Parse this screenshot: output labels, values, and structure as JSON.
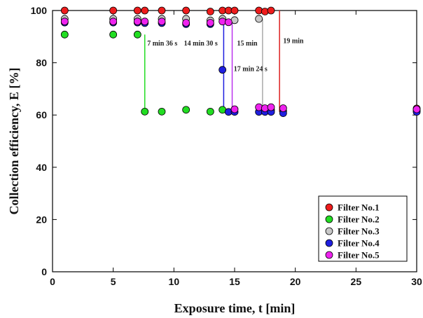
{
  "chart_data": {
    "type": "scatter",
    "xlabel": "Exposure time, t [min]",
    "ylabel": "Collection efficiency, E [%]",
    "xlim": [
      0,
      30
    ],
    "ylim": [
      0,
      100
    ],
    "xticks": [
      0,
      5,
      10,
      15,
      20,
      25,
      30
    ],
    "yticks": [
      0,
      20,
      40,
      60,
      80,
      100
    ],
    "grid": false,
    "legend_position": "bottom-right",
    "series": [
      {
        "name": "Filter No.1",
        "color": "#ee1c1c",
        "points": [
          [
            1,
            100
          ],
          [
            5,
            100
          ],
          [
            7,
            100
          ],
          [
            7.6,
            100
          ],
          [
            9,
            100
          ],
          [
            11,
            100
          ],
          [
            13,
            99.6
          ],
          [
            14,
            100
          ],
          [
            14.5,
            100
          ],
          [
            15,
            100
          ],
          [
            17,
            100
          ],
          [
            17.5,
            99.6
          ],
          [
            18,
            100
          ],
          [
            30,
            62.5
          ]
        ]
      },
      {
        "name": "Filter No.2",
        "color": "#22dd22",
        "points": [
          [
            1,
            90.8
          ],
          [
            5,
            90.8
          ],
          [
            7,
            90.8
          ],
          [
            7.6,
            61.3
          ],
          [
            9,
            61.3
          ],
          [
            11,
            62
          ],
          [
            13,
            61.3
          ],
          [
            14,
            62
          ],
          [
            30,
            62
          ]
        ]
      },
      {
        "name": "Filter No.3",
        "color": "#c8c8c8",
        "points": [
          [
            1,
            96.8
          ],
          [
            5,
            96.8
          ],
          [
            7,
            96.8
          ],
          [
            9,
            96.8
          ],
          [
            11,
            96.8
          ],
          [
            13,
            96.2
          ],
          [
            14,
            96.8
          ],
          [
            15,
            96.3
          ],
          [
            17,
            96.8
          ],
          [
            17.5,
            62
          ],
          [
            18,
            62
          ],
          [
            19,
            61.5
          ],
          [
            30,
            61.5
          ]
        ]
      },
      {
        "name": "Filter No.4",
        "color": "#1f1fe0",
        "points": [
          [
            1,
            95.4
          ],
          [
            5,
            95.4
          ],
          [
            7,
            95.4
          ],
          [
            7.6,
            95.2
          ],
          [
            9,
            95.2
          ],
          [
            11,
            94.8
          ],
          [
            13,
            94.8
          ],
          [
            14,
            77.3
          ],
          [
            14.5,
            61.2
          ],
          [
            15,
            61.2
          ],
          [
            17,
            61.2
          ],
          [
            17.5,
            61.2
          ],
          [
            18,
            61.2
          ],
          [
            19,
            60.7
          ],
          [
            30,
            61.2
          ]
        ]
      },
      {
        "name": "Filter No.5",
        "color": "#ee22ee",
        "points": [
          [
            1,
            95.8
          ],
          [
            5,
            95.8
          ],
          [
            7,
            95.8
          ],
          [
            7.6,
            95.8
          ],
          [
            9,
            95.8
          ],
          [
            11,
            95.3
          ],
          [
            13,
            95.3
          ],
          [
            14,
            95.8
          ],
          [
            14.5,
            95.5
          ],
          [
            15,
            62.2
          ],
          [
            17,
            63
          ],
          [
            17.5,
            62.6
          ],
          [
            18,
            63
          ],
          [
            19,
            62.6
          ],
          [
            30,
            62.2
          ]
        ]
      }
    ],
    "annotations": [
      {
        "text": "7 min 36 s",
        "line_x": 7.6,
        "y_top": 90.8,
        "y_bottom": 61.3,
        "color": "#22dd22",
        "label_x": 7.8,
        "label_y": 86.6,
        "anchor": "start"
      },
      {
        "text": "14 min 30 s",
        "line_x": 14.1,
        "y_top": 95.4,
        "y_bottom": 61.2,
        "color": "#1f1fe0",
        "label_x": 13.6,
        "label_y": 86.6,
        "anchor": "end"
      },
      {
        "text": "15 min",
        "line_x": 14.8,
        "y_top": 95.5,
        "y_bottom": 61.2,
        "color": "#bb33ee",
        "label_x": 15.2,
        "label_y": 86.6,
        "anchor": "start"
      },
      {
        "text": "17 min 24 s",
        "line_x": 17.3,
        "y_top": 96.8,
        "y_bottom": 62,
        "color": "#aaaaaa",
        "label_x": 17.7,
        "label_y": 76.8,
        "anchor": "end"
      },
      {
        "text": "19 min",
        "line_x": 18.7,
        "y_top": 100,
        "y_bottom": 61.2,
        "color": "#dd2020",
        "label_x": 19.0,
        "label_y": 87.5,
        "anchor": "start"
      }
    ]
  }
}
